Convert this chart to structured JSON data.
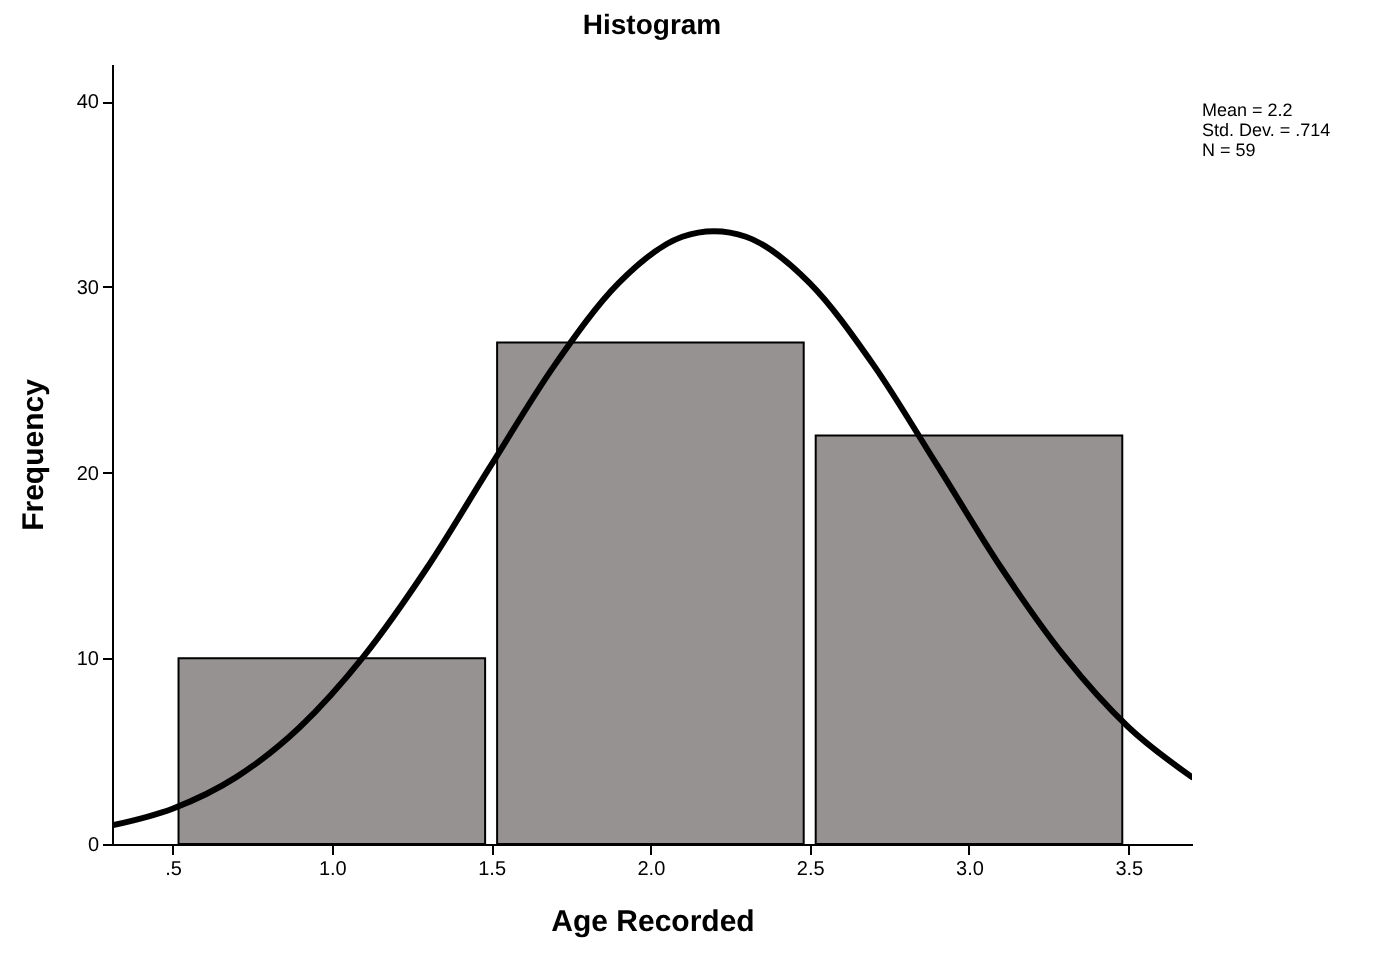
{
  "chart_data": {
    "type": "histogram",
    "title": "Histogram",
    "xlabel": "Age Recorded",
    "ylabel": "Frequency",
    "bins": [
      0.5,
      1.5,
      2.5,
      3.5
    ],
    "values": [
      10,
      27,
      22
    ],
    "color": "#969291",
    "series": [
      {
        "type": "line",
        "color": "#000000",
        "x": [
          0.31,
          0.5,
          0.7,
          0.9,
          1.1,
          1.3,
          1.5,
          1.7,
          1.9,
          2.1,
          2.2,
          2.3,
          2.5,
          2.7,
          2.9,
          3.1,
          3.3,
          3.5,
          3.7
        ],
        "values": [
          1.0,
          1.9,
          3.6,
          6.3,
          10.1,
          14.9,
          20.4,
          25.8,
          30.2,
          32.7,
          33.0,
          32.7,
          30.2,
          25.8,
          20.4,
          14.9,
          10.1,
          6.3,
          3.6
        ]
      }
    ],
    "xlim": [
      0.31,
      3.7
    ],
    "ylim": [
      0,
      42
    ],
    "xticks": [
      {
        "value": 0.5,
        "label": ".5"
      },
      {
        "value": 1,
        "label": "1.0"
      },
      {
        "value": 1.5,
        "label": "1.5"
      },
      {
        "value": 2,
        "label": "2.0"
      },
      {
        "value": 2.5,
        "label": "2.5"
      },
      {
        "value": 3,
        "label": "3.0"
      },
      {
        "value": 3.5,
        "label": "3.5"
      }
    ],
    "yticks": [
      0,
      10,
      20,
      30,
      40
    ],
    "grid": false,
    "annotations": [
      "Mean = 2.2",
      "Std. Dev. = .714",
      "N = 59"
    ]
  }
}
